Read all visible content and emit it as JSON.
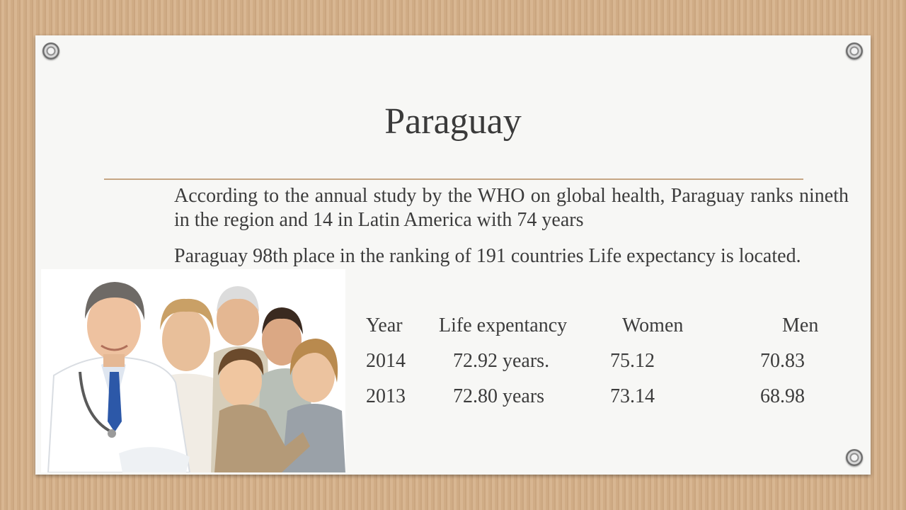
{
  "slide": {
    "title": "Paraguay",
    "paragraph_1": "According to the annual study by the WHO on global health, Paraguay ranks nineth in the region and 14 in Latin America with 74 years",
    "paragraph_2": "Paraguay 98th place in the ranking of 191 countries Life expectancy is located.",
    "table": {
      "headers": [
        "Year",
        "Life expentancy",
        "Women",
        "Men"
      ],
      "rows": [
        [
          "2014",
          "72.92 years.",
          "75.12",
          "70.83"
        ],
        [
          "2013",
          "72.80 years",
          "73.14",
          "68.98"
        ]
      ]
    }
  },
  "colors": {
    "background": "#d4b08a",
    "card": "#f7f7f5",
    "rule": "#c6a684",
    "text": "#3c3c3c"
  },
  "icons": [
    "grommet-icon",
    "grommet-icon",
    "grommet-icon"
  ]
}
